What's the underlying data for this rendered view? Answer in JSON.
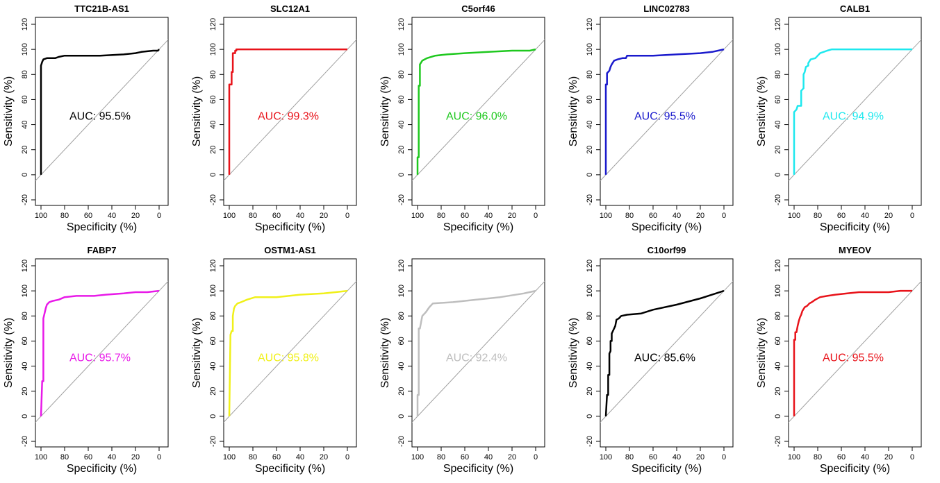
{
  "figure": {
    "xlabel": "Specificity (%)",
    "ylabel": "Sensitivity (%)",
    "auc_prefix": "AUC: "
  },
  "chart_data": [
    {
      "type": "line",
      "title": "TTC21B-AS1",
      "color": "#000000",
      "auc_text": "95.5%",
      "xlabel": "Specificity (%)",
      "ylabel": "Sensitivity (%)",
      "xlim": [
        100,
        0
      ],
      "ylim": [
        -20,
        120
      ],
      "xticks": [
        100,
        80,
        60,
        40,
        20,
        0
      ],
      "yticks": [
        -20,
        0,
        20,
        40,
        60,
        80,
        100,
        120
      ],
      "grid": false,
      "points": [
        [
          100,
          0
        ],
        [
          100,
          87
        ],
        [
          99,
          90
        ],
        [
          98,
          92
        ],
        [
          95,
          93
        ],
        [
          88,
          93
        ],
        [
          85,
          94
        ],
        [
          80,
          95
        ],
        [
          50,
          95
        ],
        [
          30,
          96
        ],
        [
          20,
          97
        ],
        [
          15,
          98
        ],
        [
          5,
          99
        ],
        [
          1,
          99
        ],
        [
          0,
          100
        ]
      ]
    },
    {
      "type": "line",
      "title": "SLC12A1",
      "color": "#e8131a",
      "auc_text": "99.3%",
      "xlabel": "Specificity (%)",
      "ylabel": "Sensitivity (%)",
      "xlim": [
        100,
        0
      ],
      "ylim": [
        -20,
        120
      ],
      "xticks": [
        100,
        80,
        60,
        40,
        20,
        0
      ],
      "yticks": [
        -20,
        0,
        20,
        40,
        60,
        80,
        100,
        120
      ],
      "grid": false,
      "points": [
        [
          100,
          0
        ],
        [
          100,
          72
        ],
        [
          98,
          72
        ],
        [
          98,
          82
        ],
        [
          97,
          82
        ],
        [
          97,
          97
        ],
        [
          95,
          97
        ],
        [
          95,
          99
        ],
        [
          94,
          99
        ],
        [
          94,
          100
        ],
        [
          0,
          100
        ]
      ]
    },
    {
      "type": "line",
      "title": "C5orf46",
      "color": "#1ec81e",
      "auc_text": "96.0%",
      "xlabel": "Specificity (%)",
      "ylabel": "Sensitivity (%)",
      "xlim": [
        100,
        0
      ],
      "ylim": [
        -20,
        120
      ],
      "xticks": [
        100,
        80,
        60,
        40,
        20,
        0
      ],
      "yticks": [
        -20,
        0,
        20,
        40,
        60,
        80,
        100,
        120
      ],
      "grid": false,
      "points": [
        [
          100,
          0
        ],
        [
          100,
          14
        ],
        [
          99,
          14
        ],
        [
          99,
          71
        ],
        [
          98,
          71
        ],
        [
          98,
          88
        ],
        [
          96,
          91
        ],
        [
          92,
          93
        ],
        [
          85,
          95
        ],
        [
          75,
          96
        ],
        [
          60,
          97
        ],
        [
          40,
          98
        ],
        [
          20,
          99
        ],
        [
          5,
          99
        ],
        [
          0,
          100
        ]
      ]
    },
    {
      "type": "line",
      "title": "LINC02783",
      "color": "#1a1acc",
      "auc_text": "95.5%",
      "xlabel": "Specificity (%)",
      "ylabel": "Sensitivity (%)",
      "xlim": [
        100,
        0
      ],
      "ylim": [
        -20,
        120
      ],
      "xticks": [
        100,
        80,
        60,
        40,
        20,
        0
      ],
      "yticks": [
        -20,
        0,
        20,
        40,
        60,
        80,
        100,
        120
      ],
      "grid": false,
      "points": [
        [
          100,
          0
        ],
        [
          100,
          72
        ],
        [
          99,
          72
        ],
        [
          99,
          81
        ],
        [
          97,
          83
        ],
        [
          96,
          86
        ],
        [
          95,
          88
        ],
        [
          93,
          91
        ],
        [
          90,
          92
        ],
        [
          86,
          93
        ],
        [
          83,
          93
        ],
        [
          82,
          95
        ],
        [
          60,
          95
        ],
        [
          40,
          96
        ],
        [
          20,
          97
        ],
        [
          10,
          98
        ],
        [
          0,
          100
        ]
      ]
    },
    {
      "type": "line",
      "title": "CALB1",
      "color": "#1ee8ee",
      "auc_text": "94.9%",
      "xlabel": "Specificity (%)",
      "ylabel": "Sensitivity (%)",
      "xlim": [
        100,
        0
      ],
      "ylim": [
        -20,
        120
      ],
      "xticks": [
        100,
        80,
        60,
        40,
        20,
        0
      ],
      "yticks": [
        -20,
        0,
        20,
        40,
        60,
        80,
        100,
        120
      ],
      "grid": false,
      "points": [
        [
          100,
          0
        ],
        [
          100,
          50
        ],
        [
          98,
          52
        ],
        [
          97,
          55
        ],
        [
          94,
          55
        ],
        [
          94,
          67
        ],
        [
          92,
          69
        ],
        [
          92,
          80
        ],
        [
          91,
          82
        ],
        [
          90,
          86
        ],
        [
          88,
          87
        ],
        [
          88,
          89
        ],
        [
          86,
          92
        ],
        [
          82,
          93
        ],
        [
          80,
          95
        ],
        [
          78,
          97
        ],
        [
          75,
          98
        ],
        [
          72,
          99
        ],
        [
          68,
          100
        ],
        [
          0,
          100
        ]
      ]
    },
    {
      "type": "line",
      "title": "FABP7",
      "color": "#e81ae8",
      "auc_text": "95.7%",
      "xlabel": "Specificity (%)",
      "ylabel": "Sensitivity (%)",
      "xlim": [
        100,
        0
      ],
      "ylim": [
        -20,
        120
      ],
      "xticks": [
        100,
        80,
        60,
        40,
        20,
        0
      ],
      "yticks": [
        -20,
        0,
        20,
        40,
        60,
        80,
        100,
        120
      ],
      "grid": false,
      "points": [
        [
          100,
          0
        ],
        [
          99,
          28
        ],
        [
          98,
          28
        ],
        [
          98,
          78
        ],
        [
          97,
          82
        ],
        [
          96,
          86
        ],
        [
          95,
          89
        ],
        [
          93,
          91
        ],
        [
          90,
          92
        ],
        [
          85,
          93
        ],
        [
          80,
          95
        ],
        [
          70,
          96
        ],
        [
          55,
          96
        ],
        [
          45,
          97
        ],
        [
          30,
          98
        ],
        [
          20,
          99
        ],
        [
          10,
          99
        ],
        [
          0,
          100
        ]
      ]
    },
    {
      "type": "line",
      "title": "OSTM1-AS1",
      "color": "#f0f01a",
      "auc_text": "95.8%",
      "xlabel": "Specificity (%)",
      "ylabel": "Sensitivity (%)",
      "xlim": [
        100,
        0
      ],
      "ylim": [
        -20,
        120
      ],
      "xticks": [
        100,
        80,
        60,
        40,
        20,
        0
      ],
      "yticks": [
        -20,
        0,
        20,
        40,
        60,
        80,
        100,
        120
      ],
      "grid": false,
      "points": [
        [
          100,
          0
        ],
        [
          99,
          65
        ],
        [
          98,
          68
        ],
        [
          97,
          68
        ],
        [
          97,
          80
        ],
        [
          96,
          86
        ],
        [
          95,
          88
        ],
        [
          93,
          90
        ],
        [
          90,
          91
        ],
        [
          85,
          93
        ],
        [
          78,
          95
        ],
        [
          60,
          95
        ],
        [
          40,
          97
        ],
        [
          20,
          98
        ],
        [
          10,
          99
        ],
        [
          0,
          100
        ]
      ]
    },
    {
      "type": "line",
      "title": "",
      "color": "#bebebe",
      "auc_text": "92.4%",
      "xlabel": "Specificity (%)",
      "ylabel": "Sensitivity (%)",
      "xlim": [
        100,
        0
      ],
      "ylim": [
        -20,
        120
      ],
      "xticks": [
        100,
        80,
        60,
        40,
        20,
        0
      ],
      "yticks": [
        -20,
        0,
        20,
        40,
        60,
        80,
        100,
        120
      ],
      "grid": false,
      "points": [
        [
          100,
          0
        ],
        [
          100,
          17
        ],
        [
          99,
          17
        ],
        [
          99,
          70
        ],
        [
          98,
          70
        ],
        [
          97,
          75
        ],
        [
          96,
          80
        ],
        [
          93,
          83
        ],
        [
          90,
          87
        ],
        [
          87,
          90
        ],
        [
          70,
          91
        ],
        [
          50,
          93
        ],
        [
          30,
          95
        ],
        [
          10,
          98
        ],
        [
          0,
          100
        ]
      ]
    },
    {
      "type": "line",
      "title": "C10orf99",
      "color": "#000000",
      "auc_text": "85.6%",
      "xlabel": "Specificity (%)",
      "ylabel": "Sensitivity (%)",
      "xlim": [
        100,
        0
      ],
      "ylim": [
        -20,
        120
      ],
      "xticks": [
        100,
        80,
        60,
        40,
        20,
        0
      ],
      "yticks": [
        -20,
        0,
        20,
        40,
        60,
        80,
        100,
        120
      ],
      "grid": false,
      "points": [
        [
          100,
          0
        ],
        [
          99,
          17
        ],
        [
          98,
          17
        ],
        [
          98,
          33
        ],
        [
          97,
          33
        ],
        [
          97,
          50
        ],
        [
          96,
          52
        ],
        [
          96,
          60
        ],
        [
          95,
          60
        ],
        [
          95,
          66
        ],
        [
          94,
          68
        ],
        [
          93,
          70
        ],
        [
          92,
          72
        ],
        [
          91,
          77
        ],
        [
          89,
          78
        ],
        [
          87,
          80
        ],
        [
          82,
          81
        ],
        [
          70,
          82
        ],
        [
          60,
          85
        ],
        [
          40,
          89
        ],
        [
          20,
          94
        ],
        [
          10,
          97
        ],
        [
          0,
          100
        ]
      ]
    },
    {
      "type": "line",
      "title": "MYEOV",
      "color": "#e8131a",
      "auc_text": "95.5%",
      "xlabel": "Specificity (%)",
      "ylabel": "Sensitivity (%)",
      "xlim": [
        100,
        0
      ],
      "ylim": [
        -20,
        120
      ],
      "xticks": [
        100,
        80,
        60,
        40,
        20,
        0
      ],
      "yticks": [
        -20,
        0,
        20,
        40,
        60,
        80,
        100,
        120
      ],
      "grid": false,
      "points": [
        [
          100,
          0
        ],
        [
          100,
          61
        ],
        [
          99,
          61
        ],
        [
          99,
          67
        ],
        [
          98,
          67
        ],
        [
          97,
          72
        ],
        [
          96,
          76
        ],
        [
          95,
          79
        ],
        [
          94,
          81
        ],
        [
          93,
          84
        ],
        [
          91,
          87
        ],
        [
          89,
          88
        ],
        [
          87,
          90
        ],
        [
          85,
          91
        ],
        [
          82,
          93
        ],
        [
          78,
          95
        ],
        [
          72,
          96
        ],
        [
          65,
          97
        ],
        [
          55,
          98
        ],
        [
          45,
          99
        ],
        [
          20,
          99
        ],
        [
          10,
          100
        ],
        [
          0,
          100
        ]
      ]
    }
  ]
}
